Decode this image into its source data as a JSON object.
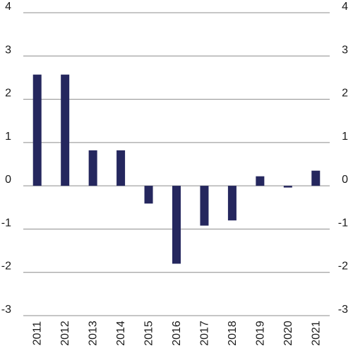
{
  "chart_data": {
    "type": "bar",
    "categories": [
      "2011",
      "2012",
      "2013",
      "2014",
      "2015",
      "2016",
      "2017",
      "2018",
      "2019",
      "2020",
      "2021"
    ],
    "values": [
      2.57,
      2.57,
      0.82,
      0.82,
      -0.41,
      -1.8,
      -0.92,
      -0.8,
      0.22,
      -0.04,
      0.35
    ],
    "title": "",
    "xlabel": "",
    "ylabel": "",
    "ylim": [
      -3,
      4
    ],
    "yticks": [
      4,
      3,
      2,
      1,
      0,
      -1,
      -2,
      -3
    ],
    "ytick_labels": [
      "4",
      "3",
      "2",
      "1",
      "0",
      "-1",
      "-2",
      "-3"
    ],
    "grid": true,
    "y_axis_labels_on_both_sides": true,
    "bar_color": "#25275e",
    "grid_color": "#8c8c8c"
  }
}
